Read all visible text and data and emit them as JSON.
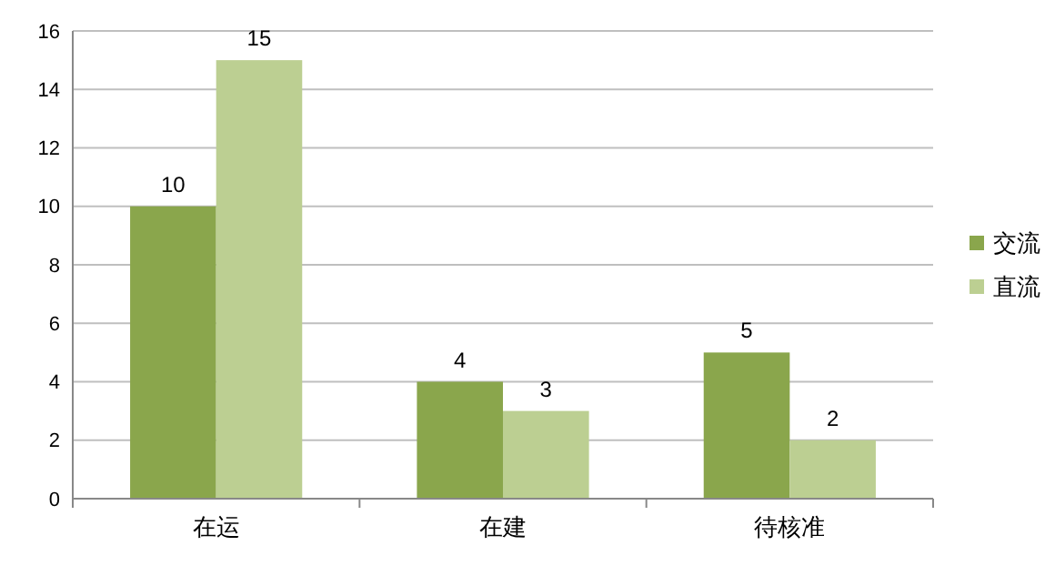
{
  "chart_data": {
    "type": "bar",
    "categories": [
      "在运",
      "在建",
      "待核准"
    ],
    "series": [
      {
        "name": "交流",
        "color": "#8aa64c",
        "values": [
          10,
          4,
          5
        ]
      },
      {
        "name": "直流",
        "color": "#bccf92",
        "values": [
          15,
          3,
          2
        ]
      }
    ],
    "ylim": [
      0,
      16
    ],
    "yticks": [
      0,
      2,
      4,
      6,
      8,
      10,
      12,
      14,
      16
    ],
    "grid": "y",
    "legend": "right",
    "data_labels": true
  }
}
